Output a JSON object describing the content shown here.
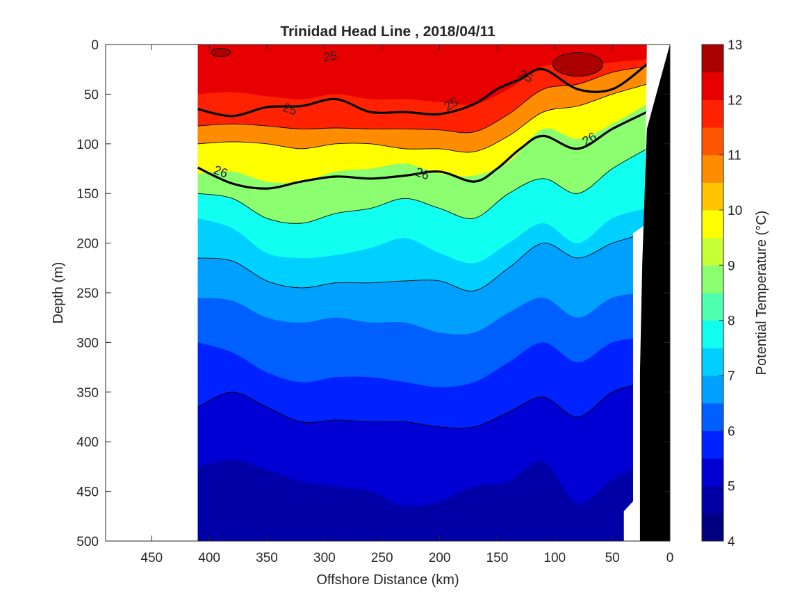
{
  "chart_data": {
    "type": "contour",
    "title": "Trinidad Head Line , 2018/04/11",
    "xlabel": "Offshore Distance (km)",
    "ylabel": "Depth (m)",
    "xlim": [
      490,
      0
    ],
    "ylim": [
      0,
      500
    ],
    "x_reversed": true,
    "y_reversed": true,
    "x_ticks": [
      450,
      400,
      350,
      300,
      250,
      200,
      150,
      100,
      50,
      0
    ],
    "y_ticks": [
      0,
      50,
      100,
      150,
      200,
      250,
      300,
      350,
      400,
      450,
      500
    ],
    "grid": false,
    "data_extent_km": [
      410,
      20
    ],
    "colorbar": {
      "label": "Potential Temperature (°C)",
      "range": [
        4,
        13
      ],
      "ticks": [
        4,
        5,
        6,
        7,
        8,
        9,
        10,
        11,
        12,
        13
      ],
      "bands": [
        {
          "from": 4.0,
          "to": 4.5,
          "color": "#000080"
        },
        {
          "from": 4.5,
          "to": 5.0,
          "color": "#0000a6"
        },
        {
          "from": 5.0,
          "to": 5.5,
          "color": "#0000d4"
        },
        {
          "from": 5.5,
          "to": 6.0,
          "color": "#0022ff"
        },
        {
          "from": 6.0,
          "to": 6.5,
          "color": "#0060ff"
        },
        {
          "from": 6.5,
          "to": 7.0,
          "color": "#00a0ff"
        },
        {
          "from": 7.0,
          "to": 7.5,
          "color": "#00d0ff"
        },
        {
          "from": 7.5,
          "to": 8.0,
          "color": "#10fff0"
        },
        {
          "from": 8.0,
          "to": 8.5,
          "color": "#4dffae"
        },
        {
          "from": 8.5,
          "to": 9.0,
          "color": "#8bff70"
        },
        {
          "from": 9.0,
          "to": 9.5,
          "color": "#c6ff36"
        },
        {
          "from": 9.5,
          "to": 10.0,
          "color": "#ffff00"
        },
        {
          "from": 10.0,
          "to": 10.5,
          "color": "#ffc400"
        },
        {
          "from": 10.5,
          "to": 11.0,
          "color": "#ff8c00"
        },
        {
          "from": 11.0,
          "to": 11.5,
          "color": "#ff5500"
        },
        {
          "from": 11.5,
          "to": 12.0,
          "color": "#ff2200"
        },
        {
          "from": 12.0,
          "to": 12.5,
          "color": "#e60000"
        },
        {
          "from": 12.5,
          "to": 13.0,
          "color": "#aa0000"
        }
      ]
    },
    "isotherm_depths": {
      "x_km": [
        410,
        380,
        350,
        320,
        290,
        260,
        230,
        200,
        170,
        140,
        110,
        80,
        50,
        20
      ],
      "levels": [
        {
          "temp": 12.0,
          "depth": [
            50,
            48,
            52,
            55,
            50,
            55,
            55,
            58,
            60,
            45,
            22,
            22,
            18,
            15
          ]
        },
        {
          "temp": 11.0,
          "depth": [
            82,
            80,
            82,
            85,
            84,
            85,
            85,
            86,
            88,
            70,
            45,
            40,
            28,
            22
          ]
        },
        {
          "temp": 10.0,
          "depth": [
            100,
            98,
            100,
            105,
            100,
            100,
            105,
            105,
            108,
            92,
            68,
            62,
            50,
            40
          ]
        },
        {
          "temp": 9.0,
          "depth": [
            130,
            128,
            138,
            138,
            128,
            125,
            120,
            130,
            132,
            118,
            85,
            95,
            80,
            60
          ]
        },
        {
          "temp": 8.0,
          "depth": [
            150,
            155,
            175,
            180,
            170,
            165,
            155,
            165,
            175,
            150,
            135,
            150,
            125,
            105
          ]
        },
        {
          "temp": 7.5,
          "depth": [
            175,
            185,
            210,
            215,
            212,
            205,
            195,
            210,
            220,
            200,
            180,
            200,
            175,
            165
          ]
        },
        {
          "temp": 7.0,
          "depth": [
            215,
            218,
            238,
            245,
            240,
            240,
            238,
            238,
            248,
            225,
            200,
            215,
            200,
            190
          ]
        },
        {
          "temp": 6.5,
          "depth": [
            255,
            258,
            275,
            280,
            275,
            280,
            280,
            290,
            290,
            270,
            255,
            275,
            255,
            250
          ]
        },
        {
          "temp": 6.0,
          "depth": [
            300,
            310,
            330,
            340,
            335,
            335,
            340,
            345,
            340,
            320,
            300,
            320,
            300,
            295
          ]
        },
        {
          "temp": 5.5,
          "depth": [
            365,
            350,
            365,
            380,
            378,
            380,
            380,
            385,
            385,
            370,
            355,
            375,
            350,
            340
          ]
        },
        {
          "temp": 5.0,
          "depth": [
            425,
            418,
            428,
            440,
            445,
            450,
            465,
            460,
            445,
            440,
            420,
            462,
            438,
            420
          ]
        }
      ]
    },
    "density_contours": [
      {
        "label": "25",
        "x_km": [
          410,
          380,
          350,
          320,
          290,
          260,
          230,
          200,
          170,
          150,
          130,
          110,
          80,
          50,
          20
        ],
        "depth": [
          65,
          72,
          63,
          62,
          55,
          68,
          68,
          70,
          60,
          45,
          35,
          25,
          45,
          45,
          20
        ]
      },
      {
        "label": "26",
        "x_km": [
          410,
          380,
          350,
          320,
          290,
          260,
          230,
          200,
          170,
          150,
          130,
          110,
          80,
          50,
          20
        ],
        "depth": [
          124,
          140,
          145,
          138,
          133,
          135,
          132,
          128,
          138,
          125,
          105,
          92,
          105,
          85,
          68
        ]
      }
    ],
    "annotations": [
      "25",
      "25",
      "25",
      "26",
      "26",
      "26"
    ]
  }
}
